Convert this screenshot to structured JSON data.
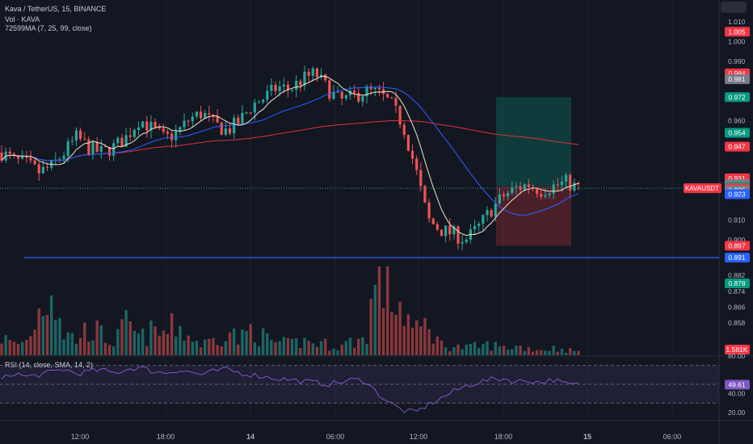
{
  "header": {
    "symbol_line": "Kava / TetherUS, 15, BINANCE",
    "volume_line": "Vol · KAVA",
    "ma_line": "72599MA (7, 25, 99, close)",
    "rsi_line": "RSI (14, close, SMA, 14, 2)"
  },
  "price_axis": {
    "ticks": [
      "1.010",
      "1.000",
      "0.990",
      "0.960",
      "0.910",
      "0.900",
      "0.882",
      "0.874",
      "0.866",
      "0.858"
    ],
    "badges": [
      {
        "text": "1.005",
        "color": "#f23645",
        "value": 1.005
      },
      {
        "text": "0.984",
        "color": "#f23645",
        "value": 0.984
      },
      {
        "text": "0.981",
        "color": "#787b86",
        "value": 0.981
      },
      {
        "text": "0.972",
        "color": "#089981",
        "value": 0.972
      },
      {
        "text": "0.954",
        "color": "#089981",
        "value": 0.954
      },
      {
        "text": "0.947",
        "color": "#f23645",
        "value": 0.947
      },
      {
        "text": "0.931",
        "color": "#f23645",
        "value": 0.931
      },
      {
        "text": "0.928",
        "color": "#787b86",
        "value": 0.928
      },
      {
        "text": "0.927",
        "color": "#fff59d",
        "value": 0.927
      },
      {
        "text": "0.927",
        "color": "#089981",
        "value": 0.927
      },
      {
        "text": "0.926",
        "color": "#f23645",
        "value": 0.926
      },
      {
        "text": "0.925",
        "color": "#787b86",
        "value": 0.925
      },
      {
        "text": "0.923",
        "color": "#2962ff",
        "value": 0.923
      },
      {
        "text": "0.897",
        "color": "#f23645",
        "value": 0.897
      },
      {
        "text": "0.891",
        "color": "#2962ff",
        "value": 0.891
      },
      {
        "text": "0.878",
        "color": "#089981",
        "value": 0.878
      },
      {
        "text": "1.581K",
        "color": "#f23645",
        "value": 1581
      }
    ],
    "symbol_label": "KAVAUSDT"
  },
  "rsi_axis": {
    "ticks": [
      "80.00",
      "40.00",
      "20.00"
    ],
    "current": "49.61"
  },
  "time_axis": {
    "labels": [
      "12:00",
      "18:00",
      "14",
      "06:00",
      "12:00",
      "18:00",
      "15",
      "06:00"
    ]
  },
  "colors": {
    "up": "#26a69a",
    "down": "#ef5350",
    "ma7": "#f0e6c8",
    "ma25": "#2962ff",
    "ma99": "#d9333f",
    "rsi": "#7e57c2"
  },
  "chart_data": {
    "type": "candlestick",
    "symbol": "KAVA/USDT",
    "interval": "15",
    "last_price": 0.926,
    "horizontal_line": 0.891,
    "position": {
      "entry": 0.927,
      "target": 0.972,
      "stop": 0.897
    },
    "close_path": [
      0.944,
      0.94,
      0.938,
      0.934,
      0.937,
      0.944,
      0.952,
      0.946,
      0.944,
      0.947,
      0.952,
      0.961,
      0.956,
      0.951,
      0.954,
      0.961,
      0.964,
      0.958,
      0.955,
      0.96,
      0.968,
      0.972,
      0.977,
      0.976,
      0.981,
      0.984,
      0.976,
      0.97,
      0.972,
      0.975,
      0.974,
      0.969,
      0.958,
      0.936,
      0.91,
      0.905,
      0.903,
      0.9,
      0.906,
      0.915,
      0.922,
      0.926,
      0.928,
      0.925,
      0.927,
      0.929,
      0.926
    ],
    "volume_path": [
      1.0,
      0.6,
      0.8,
      2.5,
      4.2,
      1.2,
      0.9,
      1.6,
      1.1,
      0.7,
      1.8,
      0.9,
      1.3,
      1.2,
      1.7,
      1.0,
      0.6,
      0.9,
      1.5,
      0.8,
      1.6,
      0.9,
      0.7,
      0.6,
      0.8,
      0.7,
      0.6,
      0.5,
      0.8,
      0.9,
      4.8,
      3.5,
      2.6,
      1.2,
      1.8,
      0.6,
      0.5,
      0.4,
      0.5,
      0.6,
      0.4,
      0.5,
      0.4,
      0.3,
      0.4,
      0.3,
      0.2
    ],
    "rsi_path": [
      55,
      62,
      58,
      60,
      63,
      66,
      61,
      64,
      65,
      62,
      66,
      68,
      64,
      62,
      65,
      63,
      60,
      64,
      66,
      62,
      60,
      58,
      56,
      55,
      53,
      52,
      50,
      52,
      55,
      54,
      40,
      30,
      22,
      20,
      28,
      35,
      42,
      48,
      52,
      55,
      56,
      53,
      54,
      52,
      55,
      50,
      49.61
    ],
    "rsi_bands": [
      70,
      50,
      30
    ]
  }
}
